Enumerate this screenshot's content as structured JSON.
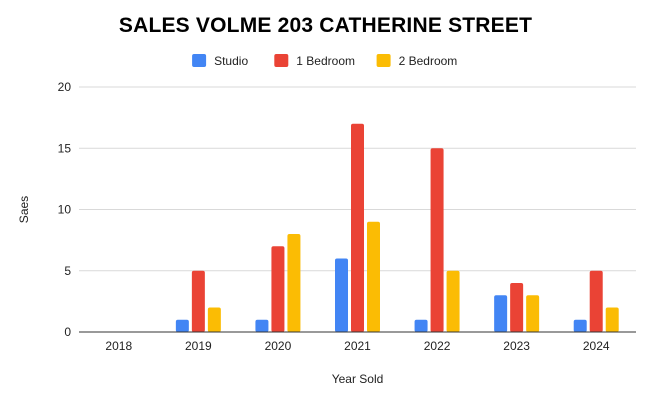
{
  "chart_data": {
    "type": "bar",
    "title": "SALES VOLME 203 CATHERINE STREET",
    "xlabel": "Year Sold",
    "ylabel": "Saes",
    "categories": [
      "2018",
      "2019",
      "2020",
      "2021",
      "2022",
      "2023",
      "2024"
    ],
    "series": [
      {
        "name": "Studio",
        "color": "#4285F4",
        "values": [
          0,
          1,
          1,
          6,
          1,
          3,
          1
        ]
      },
      {
        "name": "1 Bedroom",
        "color": "#EA4335",
        "values": [
          0,
          5,
          7,
          17,
          15,
          4,
          5
        ]
      },
      {
        "name": "2 Bedroom",
        "color": "#FBBC04",
        "values": [
          0,
          2,
          8,
          9,
          5,
          3,
          2
        ]
      }
    ],
    "ylim": [
      0,
      20
    ],
    "yticks": [
      0,
      5,
      10,
      15,
      20
    ],
    "grid": true,
    "legend_position": "top"
  }
}
